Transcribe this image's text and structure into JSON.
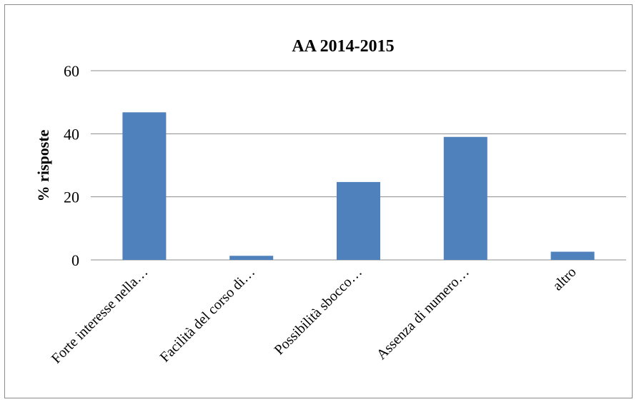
{
  "chart_data": {
    "type": "bar",
    "title": "AA 2014-2015",
    "xlabel": "",
    "ylabel": "% risposte",
    "ylim": [
      0,
      60
    ],
    "yticks": [
      0,
      20,
      40,
      60
    ],
    "grid": true,
    "categories": [
      "Forte interesse nella…",
      "Facilità del corso di…",
      "Possibilità sbocco…",
      "Assenza di numero…",
      "altro"
    ],
    "values": [
      46.8,
      1.3,
      24.7,
      39.0,
      2.6
    ],
    "bar_color": "#4f81bd",
    "grid_color": "#8c8c8c"
  }
}
